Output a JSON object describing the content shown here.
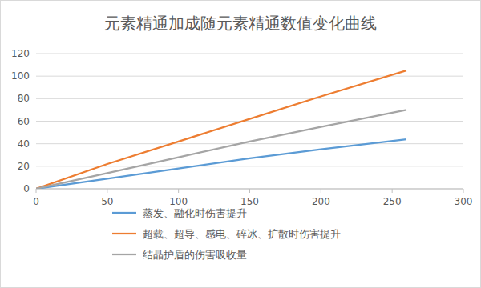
{
  "chart_data": {
    "type": "line",
    "title": "元素精通加成随元素精通数值变化曲线",
    "x": [
      0,
      50,
      100,
      150,
      200,
      260
    ],
    "series": [
      {
        "name": "蒸发、融化时伤害提升",
        "color": "#5b9bd5",
        "values": [
          0,
          9,
          18,
          27,
          35,
          44
        ]
      },
      {
        "name": "超载、超导、感电、碎冰、扩散时伤害提升",
        "color": "#ed7d31",
        "values": [
          0,
          22,
          42,
          62,
          82,
          105
        ]
      },
      {
        "name": "结晶护盾的伤害吸收量",
        "color": "#a5a5a5",
        "values": [
          0,
          14,
          28,
          42,
          55,
          70
        ]
      }
    ],
    "xlim": [
      0,
      300
    ],
    "xticks": [
      0,
      50,
      100,
      150,
      200,
      250,
      300
    ],
    "ylim": [
      0,
      120
    ],
    "yticks": [
      0,
      20,
      40,
      60,
      80,
      100,
      120
    ],
    "grid": true,
    "legend": "bottom"
  }
}
